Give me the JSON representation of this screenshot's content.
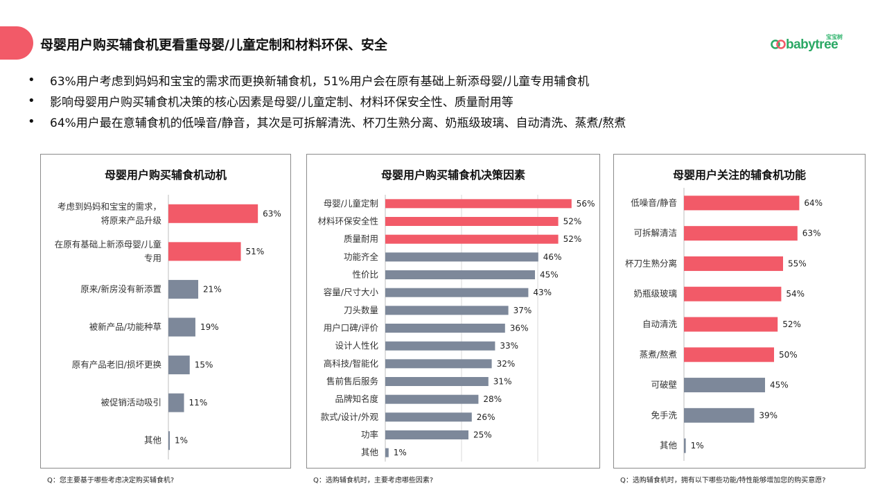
{
  "header": {
    "title": "母婴用户购买辅食机更看重母婴/儿童定制和材料环保、安全"
  },
  "logo": {
    "sub": "宝宝树",
    "word": "babytree"
  },
  "bullets": [
    "63%用户考虑到妈妈和宝宝的需求而更换新辅食机，51%用户会在原有基础上新添母婴/儿童专用辅食机",
    "影响母婴用户购买辅食机决策的核心因素是母婴/儿童定制、材料环保安全性、质量耐用等",
    "64%用户最在意辅食机的低噪音/静音，其次是可拆解清洗、杯刀生熟分离、奶瓶级玻璃、自动清洗、蒸煮/熬煮"
  ],
  "colors": {
    "accent": "#f25a68",
    "highlight_bar": "#f25a68",
    "normal_bar": "#7d889a",
    "logo_green": "#2aa864"
  },
  "chart_data": [
    {
      "type": "bar",
      "orientation": "horizontal",
      "title": "母婴用户购买辅食机动机",
      "categories": [
        [
          "考虑到妈妈和宝宝的需求，",
          "将原来产品升级"
        ],
        [
          "在原有基础上新添母婴/儿童",
          "专用"
        ],
        [
          "原来/新房没有新添置"
        ],
        [
          "被新产品/功能种草"
        ],
        [
          "原有产品老旧/损坏更换"
        ],
        [
          "被促销活动吸引"
        ],
        [
          "其他"
        ]
      ],
      "values": [
        63,
        51,
        21,
        19,
        15,
        11,
        1
      ],
      "value_labels": [
        "63%",
        "51%",
        "21%",
        "19%",
        "15%",
        "11%",
        "1%"
      ],
      "highlight_count": 2,
      "question": "Q：您主要基于哪些考虑决定购买辅食机?"
    },
    {
      "type": "bar",
      "orientation": "horizontal",
      "title": "母婴用户购买辅食机决策因素",
      "categories": [
        [
          "母婴/儿童定制"
        ],
        [
          "材料环保安全性"
        ],
        [
          "质量耐用"
        ],
        [
          "功能齐全"
        ],
        [
          "性价比"
        ],
        [
          "容量/尺寸大小"
        ],
        [
          "刀头数量"
        ],
        [
          "用户口碑/评价"
        ],
        [
          "设计人性化"
        ],
        [
          "高科技/智能化"
        ],
        [
          "售前售后服务"
        ],
        [
          "品牌知名度"
        ],
        [
          "款式/设计/外观"
        ],
        [
          "功率"
        ],
        [
          "其他"
        ]
      ],
      "values": [
        56,
        52,
        52,
        46,
        45,
        43,
        37,
        36,
        33,
        32,
        31,
        28,
        26,
        25,
        1
      ],
      "value_labels": [
        "56%",
        "52%",
        "52%",
        "46%",
        "45%",
        "43%",
        "37%",
        "36%",
        "33%",
        "32%",
        "31%",
        "28%",
        "26%",
        "25%",
        "1%"
      ],
      "highlight_count": 3,
      "grid": true,
      "question": "Q：选购辅食机时，主要考虑哪些因素?"
    },
    {
      "type": "bar",
      "orientation": "horizontal",
      "title": "母婴用户关注的辅食机功能",
      "categories": [
        [
          "低噪音/静音"
        ],
        [
          "可拆解清洁"
        ],
        [
          "杯刀生熟分离"
        ],
        [
          "奶瓶级玻璃"
        ],
        [
          "自动清洗"
        ],
        [
          "蒸煮/熬煮"
        ],
        [
          "可破壁"
        ],
        [
          "免手洗"
        ],
        [
          "其他"
        ]
      ],
      "values": [
        64,
        63,
        55,
        54,
        52,
        50,
        45,
        39,
        1
      ],
      "value_labels": [
        "64%",
        "63%",
        "55%",
        "54%",
        "52%",
        "50%",
        "45%",
        "39%",
        "1%"
      ],
      "highlight_count": 6,
      "question": "Q：选购辅食机时，拥有以下哪些功能/特性能够增加您的购买意愿?"
    }
  ]
}
